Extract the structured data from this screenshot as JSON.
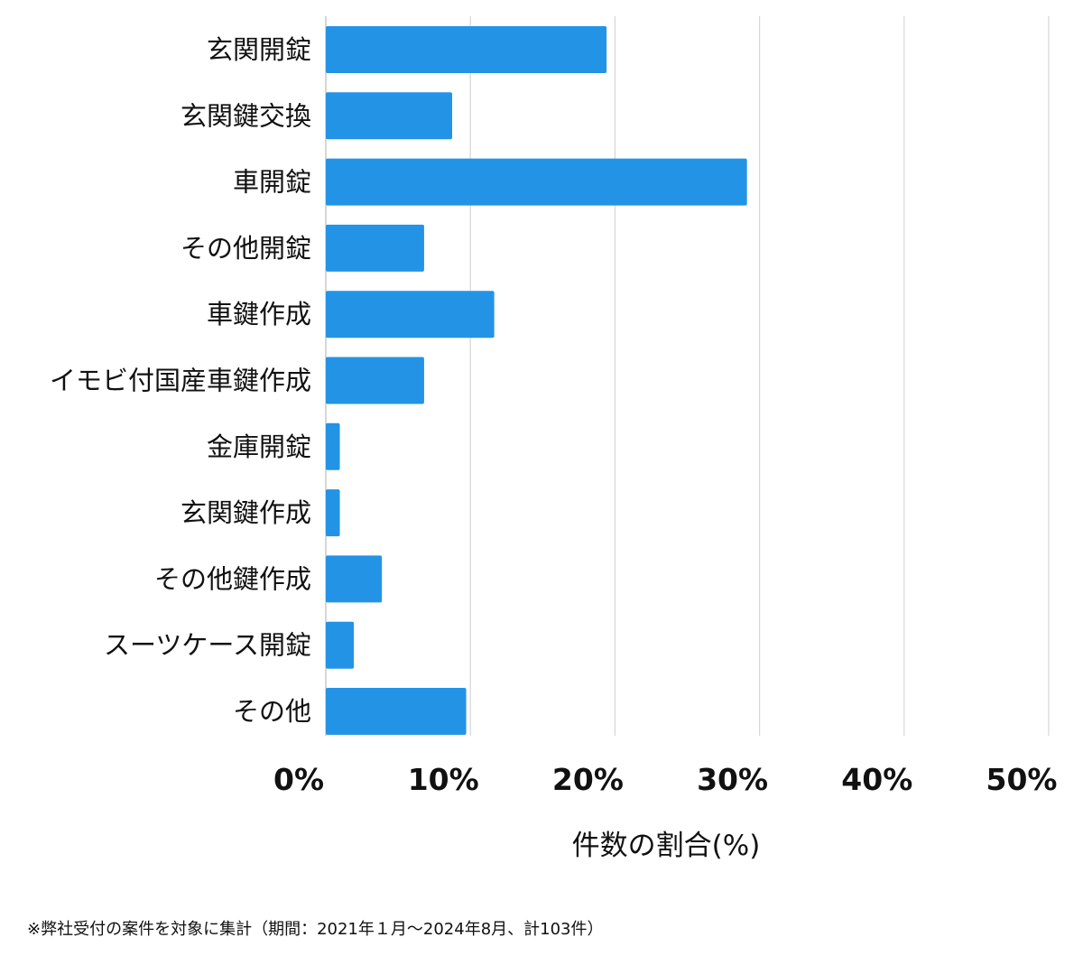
{
  "chart_data": {
    "type": "bar",
    "orientation": "horizontal",
    "categories": [
      "玄関開錠",
      "玄関鍵交換",
      "車開錠",
      "その他開錠",
      "車鍵作成",
      "イモビ付国産車鍵作成",
      "金庫開錠",
      "玄関鍵作成",
      "その他鍵作成",
      "スーツケース開錠",
      "その他"
    ],
    "values": [
      19.42,
      8.74,
      29.13,
      6.8,
      11.65,
      6.8,
      0.97,
      0.97,
      3.88,
      1.94,
      9.71
    ],
    "xlabel": "件数の割合(%)",
    "ylabel": "",
    "xlim": [
      0,
      50
    ],
    "xticks": [
      0,
      10,
      20,
      30,
      40,
      50
    ],
    "xtick_labels": [
      "0%",
      "10%",
      "20%",
      "30%",
      "40%",
      "50%"
    ],
    "grid": "vertical",
    "bar_color": "#2393E6",
    "grid_color": "#d6d6d6"
  },
  "footnote": "※弊社受付の案件を対象に集計（期間：2021年１月〜2024年8月、計103件）"
}
